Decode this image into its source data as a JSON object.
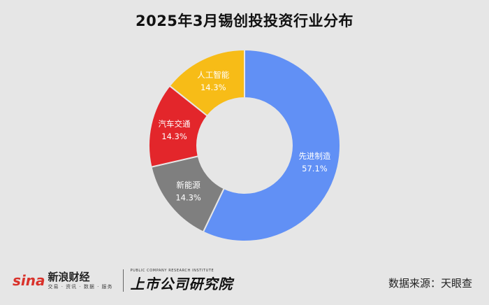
{
  "chart_data": {
    "type": "pie",
    "title": "2025年3月锡创投投资行业分布",
    "slices": [
      {
        "name": "先进制造",
        "value": 57.1,
        "label": "57.1%",
        "color": "#6190f5"
      },
      {
        "name": "新能源",
        "value": 14.3,
        "label": "14.3%",
        "color": "#7f7f7f"
      },
      {
        "name": "汽车交通",
        "value": 14.3,
        "label": "14.3%",
        "color": "#e3262b"
      },
      {
        "name": "人工智能",
        "value": 14.3,
        "label": "14.3%",
        "color": "#f7bc17"
      }
    ]
  },
  "footer": {
    "sina_mark": "sina",
    "sina_name": "新浪财经",
    "sina_sub": "交易 · 资讯 · 数据 · 服务",
    "institute_en": "PUBLIC COMPANY RESEARCH INSTITUTE",
    "institute_name": "上市公司研究院",
    "source": "数据来源：天眼查"
  }
}
